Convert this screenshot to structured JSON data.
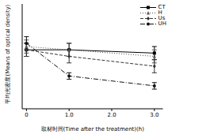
{
  "chart_data": {
    "type": "line",
    "x_label": "取材时间(Time after the treatment)(h)",
    "y_label": "平均光密度(Means of optical density)",
    "x": [
      0,
      1,
      3
    ],
    "xlim": [
      -0.1,
      3.2
    ],
    "xticks": [
      0,
      {
        "value": 1,
        "label": "1.0"
      },
      {
        "value": 2,
        "label": "2.0"
      },
      {
        "value": 3,
        "label": "3.0"
      }
    ],
    "ylim": [
      0.03,
      0.062
    ],
    "yticks": [
      0.03,
      0.035,
      0.04,
      0.045,
      0.05,
      0.055,
      0.06
    ],
    "tick_labels": "x",
    "legend": "top-right",
    "series": [
      {
        "name": "CT",
        "color": "#000000",
        "line_style": "solid",
        "marker": "square",
        "values": [
          0.048,
          0.048,
          0.047
        ],
        "errors": [
          0.002,
          0.002,
          0.002
        ]
      },
      {
        "name": "H",
        "color": "#555555",
        "line_style": "dotted",
        "marker": "triangle",
        "values": [
          0.049,
          0.048,
          0.046
        ],
        "errors": [
          0.002,
          0.002,
          0.002
        ]
      },
      {
        "name": "Us",
        "color": "#333333",
        "line_style": "dashed",
        "marker": "diamond",
        "values": [
          0.048,
          0.046,
          0.043
        ],
        "errors": [
          0.002,
          0.002,
          0.002
        ]
      },
      {
        "name": "UH",
        "color": "#111111",
        "line_style": "dashdot",
        "marker": "circle",
        "values": [
          0.05,
          0.04,
          0.037
        ],
        "errors": [
          0.002,
          0.001,
          0.001
        ]
      }
    ]
  }
}
